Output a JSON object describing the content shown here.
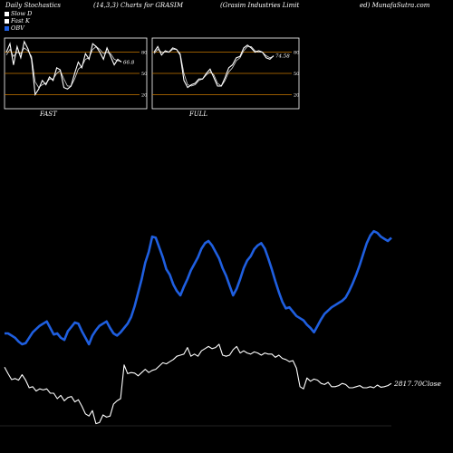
{
  "header": {
    "left": "Daily Stochastics",
    "mid1": "(14,3,3) Charts for GRASIM",
    "mid2": "(Grasim Industries Limit",
    "right": "ed) MunafaSutra.com"
  },
  "legend": [
    {
      "label": "Slow D",
      "color": "#ffffff"
    },
    {
      "label": "Fast K",
      "color": "#ffffff"
    },
    {
      "label": "OBV",
      "color": "#1f5fe0"
    }
  ],
  "colors": {
    "background": "#000000",
    "obv": "#1f5fe0",
    "price": "#ffffff",
    "guide": "#c87800"
  },
  "chart_data": [
    {
      "type": "line",
      "panel": "FAST",
      "ylim": [
        0,
        100
      ],
      "ticks": [
        "80",
        "50",
        "20"
      ],
      "tick_values": [
        80,
        50,
        20
      ],
      "last_value_label": "66.8",
      "series": [
        {
          "name": "Fast K",
          "values": [
            80,
            92,
            62,
            88,
            72,
            95,
            85,
            70,
            20,
            28,
            40,
            34,
            45,
            40,
            58,
            55,
            30,
            28,
            32,
            50,
            66,
            58,
            78,
            70,
            92,
            88,
            80,
            70,
            86,
            74,
            62,
            70,
            66
          ]
        },
        {
          "name": "Slow D",
          "values": [
            76,
            84,
            74,
            80,
            78,
            86,
            82,
            74,
            38,
            30,
            34,
            36,
            42,
            42,
            50,
            54,
            42,
            32,
            32,
            42,
            56,
            60,
            70,
            72,
            84,
            88,
            84,
            78,
            80,
            78,
            70,
            68,
            67
          ]
        }
      ]
    },
    {
      "type": "line",
      "panel": "FULL",
      "ylim": [
        0,
        100
      ],
      "ticks": [
        "80",
        "50",
        "20"
      ],
      "tick_values": [
        80,
        50,
        20
      ],
      "last_value_label": "74.58",
      "series": [
        {
          "name": "Full K",
          "values": [
            80,
            88,
            76,
            82,
            80,
            86,
            84,
            76,
            40,
            30,
            34,
            36,
            42,
            42,
            50,
            56,
            44,
            32,
            32,
            44,
            58,
            62,
            72,
            74,
            86,
            90,
            86,
            80,
            82,
            80,
            72,
            70,
            75
          ]
        },
        {
          "name": "Full D",
          "values": [
            78,
            84,
            80,
            80,
            80,
            84,
            84,
            78,
            50,
            34,
            32,
            34,
            40,
            42,
            48,
            52,
            48,
            36,
            32,
            40,
            52,
            58,
            68,
            72,
            82,
            88,
            88,
            82,
            80,
            80,
            75,
            72,
            74
          ]
        }
      ]
    },
    {
      "type": "line",
      "panel": "main",
      "price_label": "2817.70",
      "price_suffix": "Close",
      "series": [
        {
          "name": "Close",
          "values": [
            408,
            396,
            385,
            387,
            384,
            394,
            384,
            370,
            372,
            364,
            368,
            366,
            368,
            360,
            360,
            350,
            356,
            346,
            352,
            354,
            344,
            348,
            336,
            322,
            318,
            328,
            304,
            306,
            320,
            316,
            318,
            340,
            346,
            350,
            412,
            396,
            398,
            397,
            392,
            398,
            404,
            398,
            402,
            404,
            410,
            416,
            414,
            418,
            422,
            428,
            430,
            432,
            444,
            428,
            432,
            428,
            438,
            442,
            446,
            442,
            444,
            450,
            430,
            428,
            430,
            440,
            446,
            434,
            438,
            434,
            432,
            436,
            434,
            430,
            434,
            432,
            432,
            426,
            430,
            424,
            422,
            418,
            420,
            406,
            372,
            368,
            388,
            382,
            386,
            384,
            378,
            376,
            380,
            372,
            372,
            374,
            378,
            376,
            370,
            370,
            372,
            374,
            370,
            370,
            372,
            370,
            375,
            371,
            372,
            374,
            378
          ]
        },
        {
          "name": "OBV",
          "values": [
            470,
            470,
            466,
            462,
            455,
            450,
            452,
            462,
            472,
            478,
            484,
            488,
            492,
            480,
            468,
            470,
            462,
            458,
            474,
            482,
            490,
            488,
            474,
            462,
            450,
            466,
            476,
            484,
            488,
            492,
            480,
            470,
            466,
            472,
            480,
            488,
            500,
            520,
            545,
            570,
            600,
            620,
            648,
            646,
            628,
            610,
            588,
            578,
            560,
            548,
            540,
            556,
            570,
            586,
            598,
            610,
            626,
            636,
            640,
            632,
            620,
            608,
            590,
            576,
            558,
            540,
            552,
            570,
            590,
            604,
            612,
            625,
            632,
            636,
            626,
            608,
            588,
            566,
            546,
            528,
            516,
            518,
            510,
            502,
            498,
            494,
            486,
            480,
            472,
            484,
            496,
            506,
            512,
            518,
            522,
            526,
            530,
            536,
            548,
            562,
            578,
            596,
            616,
            636,
            650,
            658,
            655,
            648,
            644,
            640,
            646
          ]
        }
      ]
    }
  ],
  "panels": {
    "fast_label": "FAST",
    "full_label": "FULL"
  }
}
